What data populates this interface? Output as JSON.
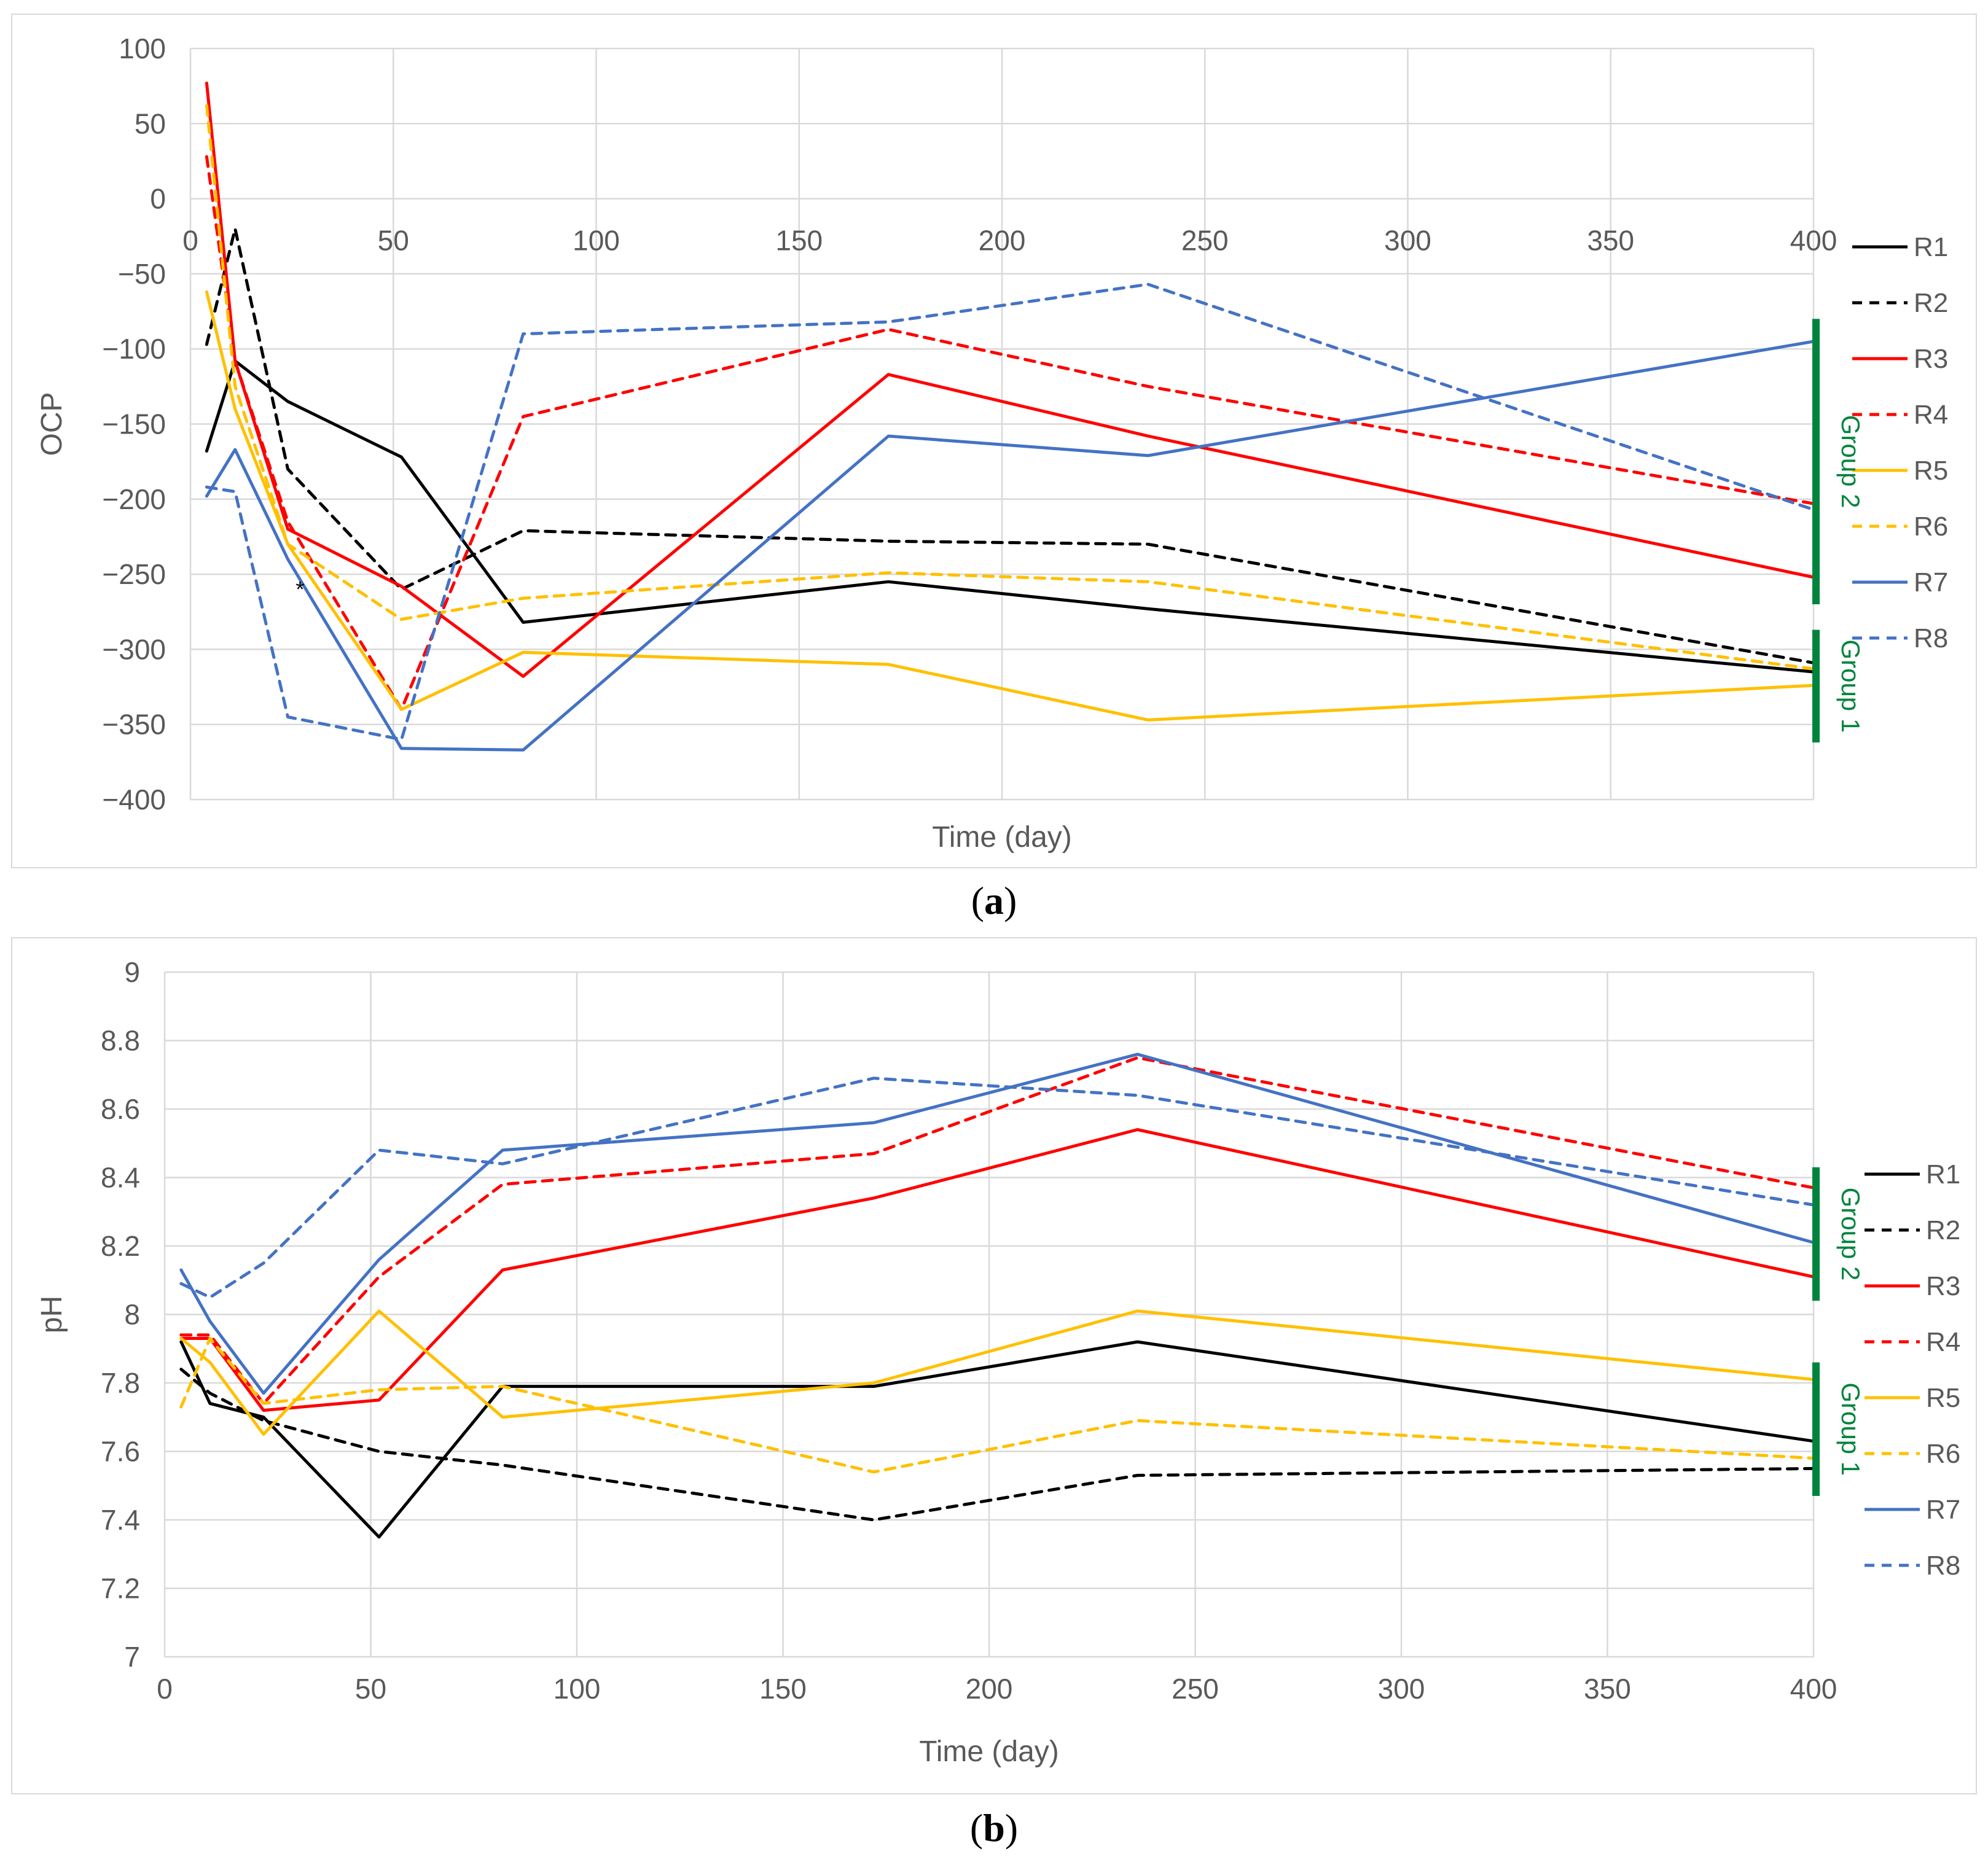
{
  "chart_data": [
    {
      "id": "a",
      "type": "line",
      "panel_label": "a",
      "title": "",
      "xlabel": "Time (day)",
      "ylabel": "OCP",
      "xlim": [
        0,
        400
      ],
      "ylim": [
        -400,
        100
      ],
      "x_ticks": [
        0,
        50,
        100,
        150,
        200,
        250,
        300,
        350,
        400
      ],
      "y_ticks": [
        100,
        50,
        0,
        -50,
        -100,
        -150,
        -200,
        -250,
        -300,
        -350,
        -400
      ],
      "x_tick_labels": [
        "0",
        "50",
        "100",
        "150",
        "200",
        "250",
        "300",
        "350",
        "400"
      ],
      "y_tick_labels": [
        "100",
        "50",
        "0",
        "−50",
        "−100",
        "−150",
        "−200",
        "−250",
        "−300",
        "−350",
        "−400"
      ],
      "x_axis_crosses_at": 0,
      "annotation": "*",
      "annotation_at": [
        27,
        -265
      ],
      "legend": [
        "R1",
        "R2",
        "R3",
        "R4",
        "R5",
        "R6",
        "R7",
        "R8"
      ],
      "groups": [
        {
          "label": "Group 2",
          "y_from": -80,
          "y_to": -270
        },
        {
          "label": "Group 1",
          "y_from": -287,
          "y_to": -362
        }
      ],
      "series": [
        {
          "name": "R1",
          "color": "#000000",
          "dash": false,
          "x": [
            4,
            11,
            24,
            52,
            82,
            172,
            236,
            400
          ],
          "y": [
            -168,
            -108,
            -135,
            -172,
            -282,
            -255,
            -273,
            -315
          ]
        },
        {
          "name": "R2",
          "color": "#000000",
          "dash": true,
          "x": [
            4,
            11,
            24,
            52,
            82,
            172,
            236,
            400
          ],
          "y": [
            -97,
            -20,
            -180,
            -260,
            -221,
            -228,
            -230,
            -309
          ]
        },
        {
          "name": "R3",
          "color": "#ff0000",
          "dash": false,
          "x": [
            4,
            11,
            24,
            52,
            82,
            172,
            236,
            400
          ],
          "y": [
            77,
            -108,
            -220,
            -258,
            -318,
            -117,
            -158,
            -252
          ]
        },
        {
          "name": "R4",
          "color": "#ff0000",
          "dash": true,
          "x": [
            4,
            11,
            24,
            52,
            82,
            172,
            236,
            400
          ],
          "y": [
            28,
            -108,
            -215,
            -340,
            -145,
            -87,
            -125,
            -203
          ]
        },
        {
          "name": "R5",
          "color": "#ffc000",
          "dash": false,
          "x": [
            4,
            11,
            24,
            52,
            82,
            172,
            236,
            400
          ],
          "y": [
            -62,
            -140,
            -230,
            -340,
            -302,
            -310,
            -347,
            -324
          ]
        },
        {
          "name": "R6",
          "color": "#ffc000",
          "dash": true,
          "x": [
            4,
            11,
            24,
            52,
            82,
            172,
            236,
            400
          ],
          "y": [
            62,
            -125,
            -230,
            -280,
            -266,
            -249,
            -255,
            -313
          ]
        },
        {
          "name": "R7",
          "color": "#4472c4",
          "dash": false,
          "x": [
            4,
            11,
            24,
            52,
            82,
            172,
            236,
            400
          ],
          "y": [
            -198,
            -167,
            -240,
            -366,
            -367,
            -158,
            -171,
            -95
          ]
        },
        {
          "name": "R8",
          "color": "#4472c4",
          "dash": true,
          "x": [
            4,
            11,
            24,
            52,
            82,
            172,
            236,
            400
          ],
          "y": [
            -192,
            -195,
            -345,
            -360,
            -90,
            -82,
            -57,
            -207
          ]
        }
      ]
    },
    {
      "id": "b",
      "type": "line",
      "panel_label": "b",
      "title": "",
      "xlabel": "Time (day)",
      "ylabel": "pH",
      "xlim": [
        0,
        400
      ],
      "ylim": [
        7,
        9
      ],
      "x_ticks": [
        0,
        50,
        100,
        150,
        200,
        250,
        300,
        350,
        400
      ],
      "y_ticks": [
        9,
        8.8,
        8.6,
        8.4,
        8.2,
        8,
        7.8,
        7.6,
        7.4,
        7.2,
        7
      ],
      "x_tick_labels": [
        "0",
        "50",
        "100",
        "150",
        "200",
        "250",
        "300",
        "350",
        "400"
      ],
      "y_tick_labels": [
        "9",
        "8.8",
        "8.6",
        "8.4",
        "8.2",
        "8",
        "7.8",
        "7.6",
        "7.4",
        "7.2",
        "7"
      ],
      "legend": [
        "R1",
        "R2",
        "R3",
        "R4",
        "R5",
        "R6",
        "R7",
        "R8"
      ],
      "groups": [
        {
          "label": "Group 2",
          "y_from": 8.43,
          "y_to": 8.04
        },
        {
          "label": "Group 1",
          "y_from": 7.86,
          "y_to": 7.47
        }
      ],
      "series": [
        {
          "name": "R1",
          "color": "#000000",
          "dash": false,
          "x": [
            4,
            11,
            24,
            52,
            82,
            172,
            236,
            400
          ],
          "y": [
            7.92,
            7.74,
            7.7,
            7.35,
            7.79,
            7.79,
            7.92,
            7.63
          ]
        },
        {
          "name": "R2",
          "color": "#000000",
          "dash": true,
          "x": [
            4,
            11,
            24,
            52,
            82,
            172,
            236,
            400
          ],
          "y": [
            7.84,
            7.77,
            7.69,
            7.6,
            7.56,
            7.4,
            7.53,
            7.55
          ]
        },
        {
          "name": "R3",
          "color": "#ff0000",
          "dash": false,
          "x": [
            4,
            11,
            24,
            52,
            82,
            172,
            236,
            400
          ],
          "y": [
            7.93,
            7.93,
            7.72,
            7.75,
            8.13,
            8.34,
            8.54,
            8.11
          ]
        },
        {
          "name": "R4",
          "color": "#ff0000",
          "dash": true,
          "x": [
            4,
            11,
            24,
            52,
            82,
            172,
            236,
            400
          ],
          "y": [
            7.94,
            7.94,
            7.74,
            8.11,
            8.38,
            8.47,
            8.75,
            8.37
          ]
        },
        {
          "name": "R5",
          "color": "#ffc000",
          "dash": false,
          "x": [
            4,
            11,
            24,
            52,
            82,
            172,
            236,
            400
          ],
          "y": [
            7.93,
            7.86,
            7.65,
            8.01,
            7.7,
            7.8,
            8.01,
            7.81
          ]
        },
        {
          "name": "R6",
          "color": "#ffc000",
          "dash": true,
          "x": [
            4,
            11,
            24,
            52,
            82,
            172,
            236,
            400
          ],
          "y": [
            7.73,
            7.93,
            7.74,
            7.78,
            7.79,
            7.54,
            7.69,
            7.58
          ]
        },
        {
          "name": "R7",
          "color": "#4472c4",
          "dash": false,
          "x": [
            4,
            11,
            24,
            52,
            82,
            172,
            236,
            400
          ],
          "y": [
            8.13,
            7.98,
            7.77,
            8.16,
            8.48,
            8.56,
            8.76,
            8.21
          ]
        },
        {
          "name": "R8",
          "color": "#4472c4",
          "dash": true,
          "x": [
            4,
            11,
            24,
            52,
            82,
            172,
            236,
            400
          ],
          "y": [
            8.09,
            8.05,
            8.15,
            8.48,
            8.44,
            8.69,
            8.64,
            8.32
          ]
        }
      ]
    }
  ],
  "captions": {
    "a_open": "(",
    "a_label": "a",
    "a_close": ")",
    "b_open": "(",
    "b_label": "b",
    "b_close": ")"
  }
}
